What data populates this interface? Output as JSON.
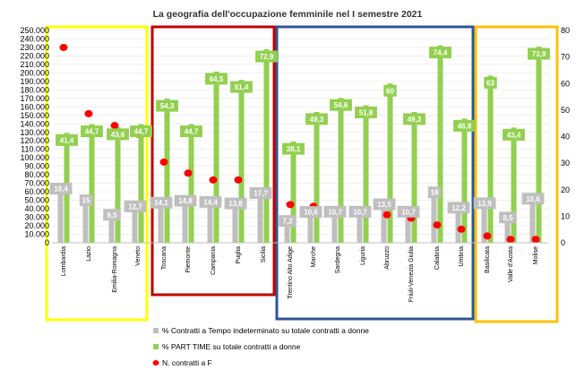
{
  "chart_data": {
    "type": "bar",
    "title": "La geografia dell'occupazione femminile nel I semestre 2021",
    "categories": [
      "Lombardia",
      "Lazio",
      "Emilia-Romagna",
      "Veneto",
      "Toscana",
      "Piemonte",
      "Campania",
      "Puglia",
      "Sicilia",
      "Trentino Alto Adige",
      "Marche",
      "Sardegna",
      "Liguria",
      "Abruzzo",
      "Friuli-Venezia Giulia",
      "Calabria",
      "Umbria",
      "Basilicata",
      "Valle d'Aosta",
      "Molise"
    ],
    "groups": [
      {
        "color": "#ffff00",
        "categories": [
          "Lombardia",
          "Lazio",
          "Emilia-Romagna",
          "Veneto"
        ]
      },
      {
        "color": "#c00000",
        "categories": [
          "Toscana",
          "Piemonte",
          "Campania",
          "Puglia",
          "Sicilia"
        ]
      },
      {
        "color": "#2f5597",
        "categories": [
          "Trentino Alto Adige",
          "Marche",
          "Sardegna",
          "Liguria",
          "Abruzzo",
          "Friuli-Venezia Giulia",
          "Calabria",
          "Umbria"
        ]
      },
      {
        "color": "#ffc000",
        "categories": [
          "Basilicata",
          "Valle d'Aosta",
          "Molise"
        ]
      }
    ],
    "series": [
      {
        "name": "% Contratti a Tempo indeterminato su totale contratti a donne",
        "type": "bar",
        "axis": "right",
        "color": "#bfbfbf",
        "values": [
          19.4,
          15,
          9.5,
          12.7,
          14.1,
          14.8,
          14.4,
          13.8,
          17.7,
          7.2,
          10.6,
          10.7,
          10.7,
          13.5,
          10.7,
          18,
          12.2,
          13.9,
          8.5,
          15.6
        ]
      },
      {
        "name": "% PART TIME su totale contratti a donne",
        "type": "bar",
        "axis": "right",
        "color": "#92d050",
        "values": [
          41.4,
          44.7,
          43.6,
          44.7,
          54.3,
          44.7,
          64.5,
          61.4,
          72.9,
          38.1,
          49.3,
          54.6,
          51.8,
          60,
          49.3,
          74.4,
          46.8,
          63,
          43.4,
          73.9
        ]
      },
      {
        "name": "N. contratti a F",
        "type": "scatter",
        "axis": "left",
        "color": "#ff0000",
        "values": [
          230000,
          152000,
          138000,
          128000,
          95000,
          82000,
          74000,
          74000,
          60000,
          45000,
          43000,
          38000,
          38000,
          33000,
          29000,
          21000,
          16000,
          8000,
          4000,
          4000
        ]
      }
    ],
    "ylim_left": [
      0,
      250000
    ],
    "ylim_right": [
      0,
      80
    ],
    "yticks_left": [
      "0",
      "10.000",
      "20.000",
      "30.000",
      "40.000",
      "50.000",
      "60.000",
      "70.000",
      "80.000",
      "90.000",
      "100.000",
      "110.000",
      "120.000",
      "130.000",
      "140.000",
      "150.000",
      "160.000",
      "170.000",
      "180.000",
      "190.000",
      "200.000",
      "210.000",
      "220.000",
      "230.000",
      "240.000",
      "250.000"
    ],
    "yticks_right": [
      "0",
      "10",
      "20",
      "30",
      "40",
      "50",
      "60",
      "70",
      "80"
    ],
    "bar_labels": {
      "grey": [
        "19,4",
        "15",
        "9,5",
        "12,7",
        "14,1",
        "14,8",
        "14,4",
        "13,8",
        "17,7",
        "7,2",
        "10,6",
        "10,7",
        "10,7",
        "13,5",
        "10,7",
        "18",
        "12,2",
        "13,9",
        "8,5",
        "15,6"
      ],
      "green": [
        "41,4",
        "44,7",
        "43,6",
        "44,7",
        "54,3",
        "44,7",
        "64,5",
        "61,4",
        "72,9",
        "38,1",
        "49,3",
        "54,6",
        "51,8",
        "60",
        "49,3",
        "74,4",
        "46,8",
        "63",
        "43,4",
        "73,9"
      ]
    },
    "legend": [
      "% Contratti a Tempo indeterminato su totale contratti a donne",
      "% PART TIME su totale contratti a donne",
      "N. contratti a F"
    ],
    "legend_position": "bottom"
  }
}
